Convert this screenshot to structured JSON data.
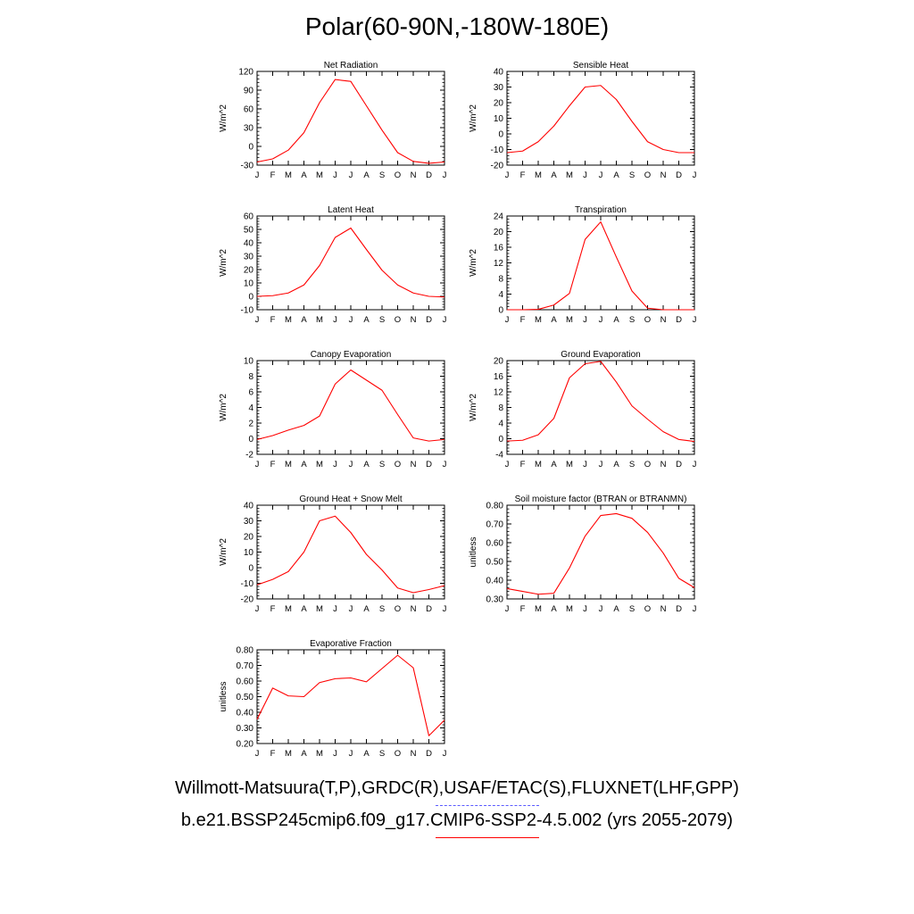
{
  "title": "Polar(60-90N,-180W-180E)",
  "legend": {
    "obs_label": "Willmott-Matsuura(T,P),GRDC(R),USAF/ETAC(S),FLUXNET(LHF,GPP)",
    "model_label": "b.e21.BSSP245cmip6.f09_g17.CMIP6-SSP2-4.5.002 (yrs 2055-2079)",
    "obs_color": "#5a5aff",
    "model_color": "#ff0000"
  },
  "chart_data": [
    {
      "type": "line",
      "title": "Net Radiation",
      "ylabel": "W/m^2",
      "categories": [
        "J",
        "F",
        "M",
        "A",
        "M",
        "J",
        "J",
        "A",
        "S",
        "O",
        "N",
        "D",
        "J"
      ],
      "ylim": [
        -30,
        120
      ],
      "yticks": [
        -30,
        0,
        30,
        60,
        90,
        120
      ],
      "ytick_labels": [
        "-30",
        "0",
        "30",
        "60",
        "90",
        "120"
      ],
      "series": [
        {
          "name": "model",
          "color": "#ff0000",
          "values": [
            -25,
            -20,
            -6,
            22,
            70,
            107,
            104,
            65,
            26,
            -10,
            -24,
            -27,
            -25
          ]
        }
      ]
    },
    {
      "type": "line",
      "title": "Sensible Heat",
      "ylabel": "W/m^2",
      "categories": [
        "J",
        "F",
        "M",
        "A",
        "M",
        "J",
        "J",
        "A",
        "S",
        "O",
        "N",
        "D",
        "J"
      ],
      "ylim": [
        -20,
        40
      ],
      "yticks": [
        -20,
        -10,
        0,
        10,
        20,
        30,
        40
      ],
      "ytick_labels": [
        "-20",
        "-10",
        "0",
        "10",
        "20",
        "30",
        "40"
      ],
      "series": [
        {
          "name": "model",
          "color": "#ff0000",
          "values": [
            -12,
            -11,
            -5,
            5,
            18,
            30,
            31,
            22,
            8,
            -5,
            -10,
            -12,
            -12
          ]
        }
      ]
    },
    {
      "type": "line",
      "title": "Latent Heat",
      "ylabel": "W/m^2",
      "categories": [
        "J",
        "F",
        "M",
        "A",
        "M",
        "J",
        "J",
        "A",
        "S",
        "O",
        "N",
        "D",
        "J"
      ],
      "ylim": [
        -10,
        60
      ],
      "yticks": [
        -10,
        0,
        10,
        20,
        30,
        40,
        50,
        60
      ],
      "ytick_labels": [
        "-10",
        "0",
        "10",
        "20",
        "30",
        "40",
        "50",
        "60"
      ],
      "series": [
        {
          "name": "model",
          "color": "#ff0000",
          "values": [
            0,
            0.5,
            2.5,
            8.5,
            23,
            44,
            51,
            35,
            19.5,
            8.5,
            2.5,
            0,
            -0.5
          ]
        }
      ]
    },
    {
      "type": "line",
      "title": "Transpiration",
      "ylabel": "W/m^2",
      "categories": [
        "J",
        "F",
        "M",
        "A",
        "M",
        "J",
        "J",
        "A",
        "S",
        "O",
        "N",
        "D",
        "J"
      ],
      "ylim": [
        0,
        24
      ],
      "yticks": [
        0,
        4,
        8,
        12,
        16,
        20,
        24
      ],
      "ytick_labels": [
        "0",
        "4",
        "8",
        "12",
        "16",
        "20",
        "24"
      ],
      "series": [
        {
          "name": "model",
          "color": "#ff0000",
          "values": [
            0,
            0,
            0.1,
            1.2,
            4.2,
            18,
            22.5,
            13.5,
            4.8,
            0.4,
            0,
            0,
            0
          ]
        }
      ]
    },
    {
      "type": "line",
      "title": "Canopy Evaporation",
      "ylabel": "W/m^2",
      "categories": [
        "J",
        "F",
        "M",
        "A",
        "M",
        "J",
        "J",
        "A",
        "S",
        "O",
        "N",
        "D",
        "J"
      ],
      "ylim": [
        -2,
        10
      ],
      "yticks": [
        -2,
        0,
        2,
        4,
        6,
        8,
        10
      ],
      "ytick_labels": [
        "-2",
        "0",
        "2",
        "4",
        "6",
        "8",
        "10"
      ],
      "series": [
        {
          "name": "model",
          "color": "#ff0000",
          "values": [
            -0.1,
            0.4,
            1.1,
            1.7,
            2.9,
            7.0,
            8.8,
            7.5,
            6.2,
            3.1,
            0.1,
            -0.3,
            -0.1
          ]
        }
      ]
    },
    {
      "type": "line",
      "title": "Ground Evaporation",
      "ylabel": "W/m^2",
      "categories": [
        "J",
        "F",
        "M",
        "A",
        "M",
        "J",
        "J",
        "A",
        "S",
        "O",
        "N",
        "D",
        "J"
      ],
      "ylim": [
        -4,
        20
      ],
      "yticks": [
        -4,
        0,
        4,
        8,
        12,
        16,
        20
      ],
      "ytick_labels": [
        "-4",
        "0",
        "4",
        "8",
        "12",
        "16",
        "20"
      ],
      "series": [
        {
          "name": "model",
          "color": "#ff0000",
          "values": [
            -0.6,
            -0.4,
            1.0,
            5.2,
            15.6,
            19.2,
            19.8,
            14.5,
            8.4,
            5.0,
            1.8,
            -0.2,
            -0.7
          ]
        }
      ]
    },
    {
      "type": "line",
      "title": "Ground Heat + Snow Melt",
      "ylabel": "W/m^2",
      "categories": [
        "J",
        "F",
        "M",
        "A",
        "M",
        "J",
        "J",
        "A",
        "S",
        "O",
        "N",
        "D",
        "J"
      ],
      "ylim": [
        -20,
        40
      ],
      "yticks": [
        -20,
        -10,
        0,
        10,
        20,
        30,
        40
      ],
      "ytick_labels": [
        "-20",
        "-10",
        "0",
        "10",
        "20",
        "30",
        "40"
      ],
      "series": [
        {
          "name": "model",
          "color": "#ff0000",
          "values": [
            -11,
            -7.5,
            -2.5,
            10,
            30,
            33,
            22.5,
            8.5,
            -1.5,
            -13,
            -16,
            -14,
            -11.5
          ]
        }
      ]
    },
    {
      "type": "line",
      "title": "Soil moisture factor (BTRAN or BTRANMN)",
      "ylabel": "unitless",
      "categories": [
        "J",
        "F",
        "M",
        "A",
        "M",
        "J",
        "J",
        "A",
        "S",
        "O",
        "N",
        "D",
        "J"
      ],
      "ylim": [
        0.3,
        0.8
      ],
      "yticks": [
        0.3,
        0.4,
        0.5,
        0.6,
        0.7,
        0.8
      ],
      "ytick_labels": [
        "0.30",
        "0.40",
        "0.50",
        "0.60",
        "0.70",
        "0.80"
      ],
      "series": [
        {
          "name": "model",
          "color": "#ff0000",
          "values": [
            0.355,
            0.34,
            0.325,
            0.33,
            0.465,
            0.635,
            0.745,
            0.755,
            0.73,
            0.655,
            0.545,
            0.41,
            0.36
          ]
        }
      ]
    },
    {
      "type": "line",
      "title": "Evaporative Fraction",
      "ylabel": "unitless",
      "categories": [
        "J",
        "F",
        "M",
        "A",
        "M",
        "J",
        "J",
        "A",
        "S",
        "O",
        "N",
        "D",
        "J"
      ],
      "ylim": [
        0.2,
        0.8
      ],
      "yticks": [
        0.2,
        0.3,
        0.4,
        0.5,
        0.6,
        0.7,
        0.8
      ],
      "ytick_labels": [
        "0.20",
        "0.30",
        "0.40",
        "0.50",
        "0.60",
        "0.70",
        "0.80"
      ],
      "series": [
        {
          "name": "model",
          "color": "#ff0000",
          "values": [
            0.355,
            0.555,
            0.505,
            0.5,
            0.59,
            0.615,
            0.62,
            0.595,
            0.68,
            0.765,
            0.685,
            0.25,
            0.35
          ]
        }
      ]
    }
  ]
}
